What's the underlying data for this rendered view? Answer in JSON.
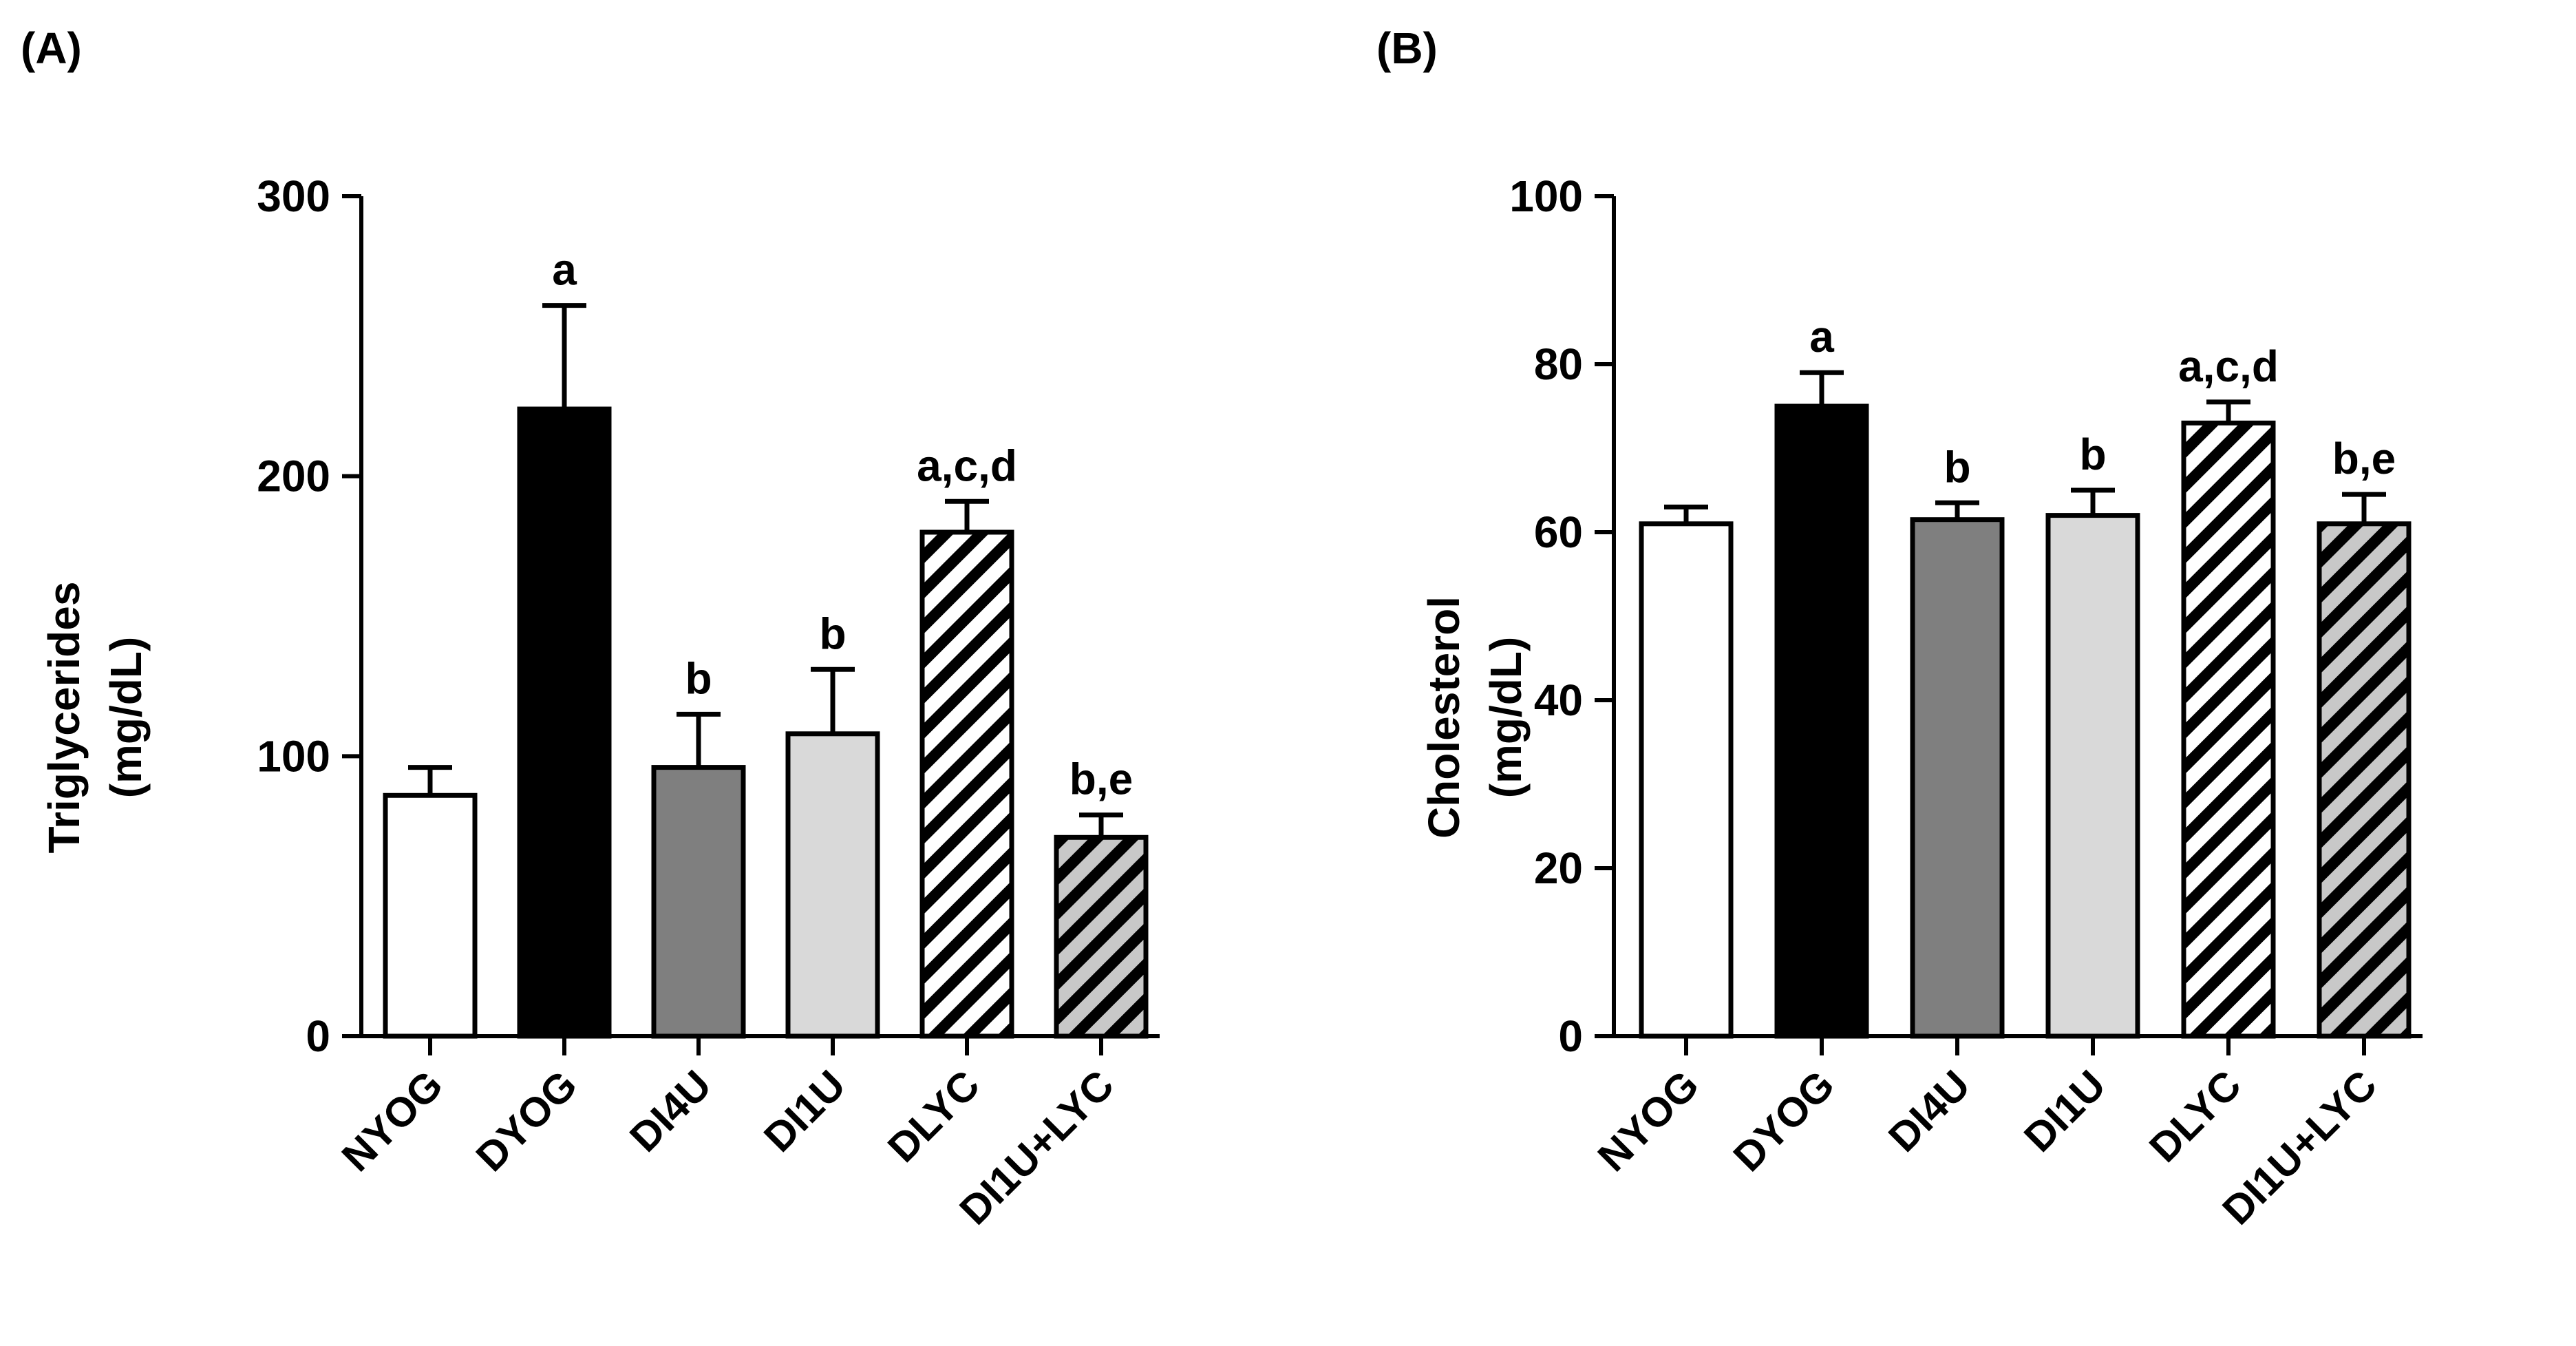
{
  "chart_data": [
    {
      "panel_label": "(A)",
      "type": "bar",
      "ylabel": [
        "Triglycerides",
        "(mg/dL)"
      ],
      "ylim": [
        0,
        300
      ],
      "yticks": [
        0,
        100,
        200,
        300
      ],
      "categories": [
        "NYOG",
        "DYOG",
        "DI4U",
        "DI1U",
        "DLYC",
        "DI1U+LYC"
      ],
      "values": [
        86,
        224,
        96,
        108,
        180,
        71
      ],
      "errors": [
        10,
        37,
        19,
        23,
        11,
        8
      ],
      "significance": [
        "",
        "a",
        "b",
        "b",
        "a,c,d",
        "b,e"
      ]
    },
    {
      "panel_label": "(B)",
      "type": "bar",
      "ylabel": [
        "Cholesterol",
        "(mg/dL)"
      ],
      "ylim": [
        0,
        100
      ],
      "yticks": [
        0,
        20,
        40,
        60,
        80,
        100
      ],
      "categories": [
        "NYOG",
        "DYOG",
        "DI4U",
        "DI1U",
        "DLYC",
        "DI1U+LYC"
      ],
      "values": [
        61,
        75,
        61.5,
        62,
        73,
        61
      ],
      "errors": [
        2,
        4,
        2,
        3,
        2.5,
        3.5
      ],
      "significance": [
        "",
        "a",
        "b",
        "b",
        "a,c,d",
        "b,e"
      ]
    }
  ],
  "styles": {
    "fills": [
      "#ffffff",
      "#000000",
      "#7f7f7f",
      "#d9d9d9",
      "hatch-white",
      "hatch-gray"
    ],
    "hatch_gray_base": "#c8c8c8",
    "stroke": "#000000"
  }
}
